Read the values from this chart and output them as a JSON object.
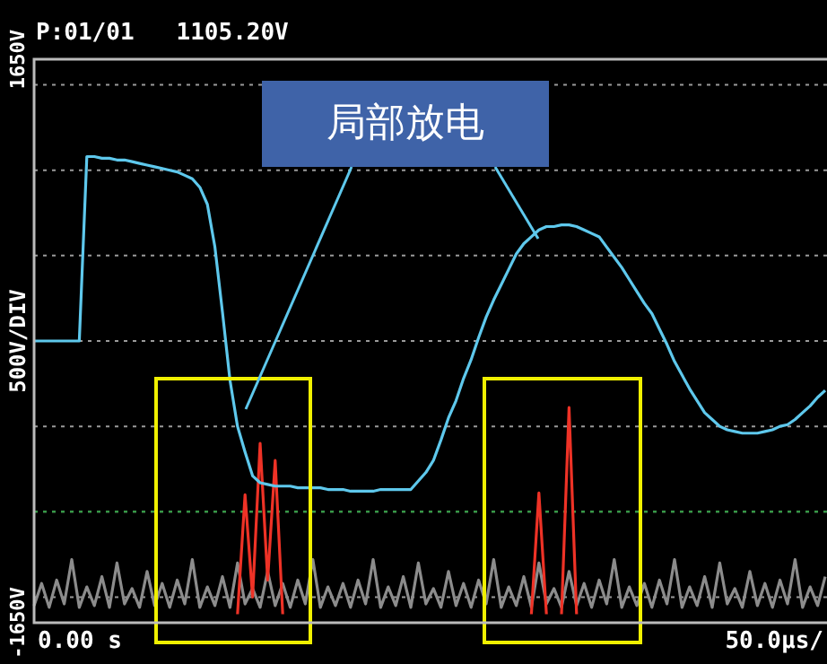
{
  "chart_data": {
    "type": "line",
    "title": "P:01/01   1105.20V",
    "ylabel": "500V/DIV",
    "xlabel": "50.0µs/",
    "categories": [
      null,
      null,
      null,
      null,
      null,
      null,
      null,
      null,
      null,
      null,
      null,
      null,
      null,
      null,
      null,
      null,
      null,
      null,
      null,
      null,
      null,
      null,
      null,
      null,
      null,
      null,
      null,
      null,
      null,
      null,
      null,
      null,
      null,
      null,
      null,
      null,
      null,
      null,
      null,
      null,
      null,
      null,
      null,
      null,
      null,
      null,
      null,
      null,
      null,
      null,
      null,
      null,
      null,
      null,
      null,
      null,
      null,
      null,
      null,
      null,
      null,
      null,
      null,
      null,
      null,
      null,
      null,
      null,
      null,
      null,
      null,
      null,
      null,
      null,
      null,
      null,
      null,
      null,
      null,
      null,
      null,
      null,
      null,
      null,
      null,
      null,
      null,
      null,
      null,
      null,
      null,
      null,
      null,
      null,
      null,
      null,
      null,
      null,
      null,
      null,
      null,
      null,
      null,
      null,
      null,
      null
    ],
    "ylim": [
      -1650,
      1650
    ],
    "yticks": [
      {
        "value": -1650,
        "label": "-1650V"
      },
      {
        "value": -1500,
        "label": null
      },
      {
        "value": -1000,
        "label": null
      },
      {
        "value": -500,
        "label": null
      },
      {
        "value": 0,
        "label": null
      },
      {
        "value": 500,
        "label": null
      },
      {
        "value": 1000,
        "label": null
      },
      {
        "value": 1500,
        "label": null
      },
      {
        "value": 1650,
        "label": "1650V"
      }
    ],
    "grid": "y",
    "series": [
      {
        "color": "#8c8c8c",
        "values": [
          -1550,
          -1420,
          -1560,
          -1400,
          -1540,
          -1280,
          -1560,
          -1440,
          -1550,
          -1380,
          -1560,
          -1300,
          -1540,
          -1450,
          -1560,
          -1350,
          -1550,
          -1420,
          -1560,
          -1400,
          -1540,
          -1280,
          -1560,
          -1440,
          -1550,
          -1380,
          -1560,
          -1300,
          -1540,
          -1450,
          -1560,
          -1350,
          -1550,
          -1420,
          -1560,
          -1400,
          -1540,
          -1280,
          -1560,
          -1440,
          -1550,
          -1420,
          -1560,
          -1400,
          -1540,
          -1280,
          -1560,
          -1440,
          -1550,
          -1380,
          -1560,
          -1300,
          -1540,
          -1450,
          -1560,
          -1350,
          -1550,
          -1420,
          -1560,
          -1400,
          -1540,
          -1280,
          -1560,
          -1440,
          -1550,
          -1380,
          -1560,
          -1300,
          -1540,
          -1450,
          -1560,
          -1350,
          -1550,
          -1420,
          -1560,
          -1400,
          -1540,
          -1280,
          -1560,
          -1440,
          -1550,
          -1420,
          -1560,
          -1400,
          -1540,
          -1280,
          -1560,
          -1440,
          -1550,
          -1380,
          -1560,
          -1300,
          -1540,
          -1450,
          -1560,
          -1350,
          -1550,
          -1420,
          -1560,
          -1400,
          -1540,
          -1280,
          -1560,
          -1440,
          -1550,
          -1380
        ]
      },
      {
        "color": "#ee3226",
        "values": [
          null,
          null,
          null,
          null,
          null,
          null,
          null,
          null,
          null,
          null,
          null,
          null,
          null,
          null,
          null,
          null,
          null,
          null,
          null,
          null,
          null,
          null,
          null,
          null,
          null,
          null,
          null,
          -1600,
          -900,
          -1500,
          -600,
          -1400,
          -700,
          -1600,
          null,
          null,
          null,
          null,
          null,
          null,
          null,
          null,
          null,
          null,
          null,
          null,
          null,
          null,
          null,
          null,
          null,
          null,
          null,
          null,
          null,
          null,
          null,
          null,
          null,
          null,
          null,
          null,
          null,
          null,
          null,
          null,
          null,
          null,
          null,
          null,
          null,
          null,
          null,
          null,
          null,
          null,
          null,
          null,
          null,
          null,
          null,
          null,
          null,
          null,
          null,
          null,
          null,
          null,
          null,
          null,
          null,
          null,
          null,
          null,
          null,
          null,
          null,
          null,
          null,
          null,
          null,
          null,
          null,
          null,
          null,
          null
        ]
      },
      {
        "color": "#ee3226",
        "values": [
          null,
          null,
          null,
          null,
          null,
          null,
          null,
          null,
          null,
          null,
          null,
          null,
          null,
          null,
          null,
          null,
          null,
          null,
          null,
          null,
          null,
          null,
          null,
          null,
          null,
          null,
          null,
          null,
          null,
          null,
          null,
          null,
          null,
          null,
          null,
          null,
          null,
          null,
          null,
          null,
          null,
          null,
          null,
          null,
          null,
          null,
          null,
          null,
          null,
          null,
          null,
          null,
          null,
          null,
          null,
          null,
          null,
          null,
          null,
          null,
          null,
          null,
          null,
          null,
          null,
          null,
          -1600,
          -890,
          -1600,
          null,
          null,
          null,
          null,
          null,
          null,
          null,
          null,
          null,
          null,
          null,
          null,
          null,
          null,
          null,
          null,
          null,
          null,
          null,
          null,
          null,
          null,
          null,
          null,
          null,
          null,
          null,
          null,
          null,
          null,
          null,
          null,
          null,
          null,
          null,
          null,
          null
        ]
      },
      {
        "color": "#ee3226",
        "values": [
          null,
          null,
          null,
          null,
          null,
          null,
          null,
          null,
          null,
          null,
          null,
          null,
          null,
          null,
          null,
          null,
          null,
          null,
          null,
          null,
          null,
          null,
          null,
          null,
          null,
          null,
          null,
          null,
          null,
          null,
          null,
          null,
          null,
          null,
          null,
          null,
          null,
          null,
          null,
          null,
          null,
          null,
          null,
          null,
          null,
          null,
          null,
          null,
          null,
          null,
          null,
          null,
          null,
          null,
          null,
          null,
          null,
          null,
          null,
          null,
          null,
          null,
          null,
          null,
          null,
          null,
          null,
          null,
          null,
          null,
          -1600,
          -390,
          -1600,
          null,
          null,
          null,
          null,
          null,
          null,
          null,
          null,
          null,
          null,
          null,
          null,
          null,
          null,
          null,
          null,
          null,
          null,
          null,
          null,
          null,
          null,
          null,
          null,
          null,
          null,
          null,
          null,
          null,
          null,
          null,
          null,
          null
        ]
      },
      {
        "color": "#5ec8ec",
        "values": [
          0,
          0,
          0,
          0,
          0,
          0,
          0,
          1080,
          1080,
          1070,
          1070,
          1060,
          1060,
          1050,
          1040,
          1030,
          1020,
          1010,
          1000,
          990,
          970,
          950,
          900,
          800,
          550,
          170,
          -230,
          -500,
          -650,
          -790,
          -830,
          -840,
          -850,
          -850,
          -850,
          -860,
          -860,
          -860,
          -860,
          -870,
          -870,
          -870,
          -880,
          -880,
          -880,
          -880,
          -870,
          -870,
          -870,
          -870,
          -870,
          -820,
          -770,
          -700,
          -580,
          -450,
          -350,
          -220,
          -110,
          20,
          140,
          240,
          330,
          420,
          510,
          570,
          610,
          650,
          670,
          670,
          680,
          680,
          670,
          650,
          630,
          610,
          550,
          490,
          430,
          360,
          290,
          220,
          160,
          70,
          -20,
          -120,
          -200,
          -280,
          -350,
          -420,
          -460,
          -500,
          -520,
          -530,
          -540,
          -540,
          -540,
          -530,
          -520,
          -500,
          -490,
          -460,
          -420,
          -380,
          -330,
          -290
        ]
      }
    ],
    "ref_lines": [
      {
        "axis": "y",
        "value": -1000,
        "color": "#2e9e40",
        "line_style": "dotted"
      }
    ],
    "annotations": [
      "局部放电",
      "0.00 s"
    ]
  }
}
